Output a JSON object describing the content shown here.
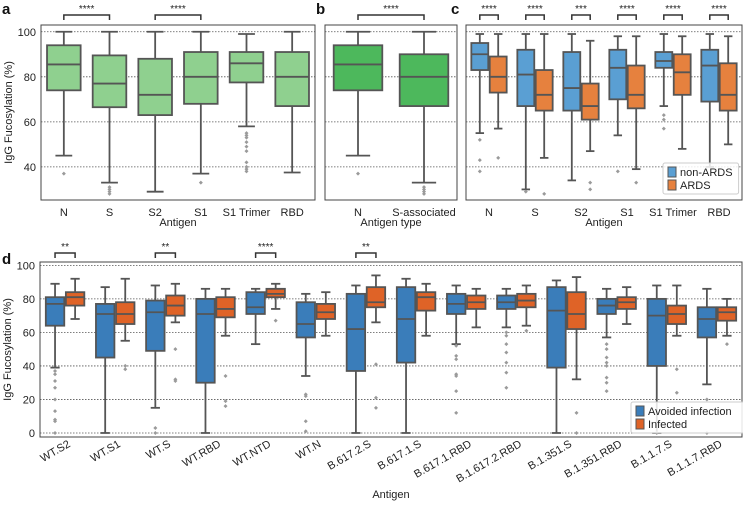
{
  "colors": {
    "light_green": "#8fd08f",
    "green": "#4db85c",
    "blue_c": "#5a9fd3",
    "orange_c": "#e6813e",
    "blue_d": "#3a7dba",
    "orange_d": "#df6327",
    "edge": "#555555",
    "flier": "#9a9a9a"
  },
  "chart_data": [
    {
      "panel": "a",
      "type": "box",
      "ylabel": "IgG Fucosylation (%)",
      "xlabel": "Antigen",
      "ylim": [
        25.3,
        103
      ],
      "yticks": [
        40,
        60,
        80,
        100
      ],
      "categories": [
        "N",
        "S",
        "S2",
        "S1",
        "S1 Trimer",
        "RBD"
      ],
      "series": [
        {
          "name": "all",
          "color": "light_green",
          "boxes": [
            {
              "lo": 45,
              "q1": 74,
              "med": 85.5,
              "q3": 94,
              "hi": 100,
              "fliers": [
                37
              ]
            },
            {
              "lo": 33,
              "q1": 66.5,
              "med": 77,
              "q3": 89.5,
              "hi": 100,
              "fliers": [
                28,
                29,
                30,
                31
              ]
            },
            {
              "lo": 29,
              "q1": 63,
              "med": 72,
              "q3": 88,
              "hi": 100,
              "fliers": []
            },
            {
              "lo": 37,
              "q1": 68,
              "med": 80,
              "q3": 91,
              "hi": 100,
              "fliers": [
                33
              ]
            },
            {
              "lo": 58,
              "q1": 77.5,
              "med": 86,
              "q3": 91,
              "hi": 99,
              "fliers": [
                55,
                54,
                53,
                51,
                49,
                47,
                42,
                40,
                39,
                38
              ]
            },
            {
              "lo": 37.5,
              "q1": 67,
              "med": 80,
              "q3": 91,
              "hi": 100,
              "fliers": []
            }
          ]
        }
      ],
      "significance": [
        {
          "from": 0,
          "to": 1,
          "label": "****"
        },
        {
          "from": 2,
          "to": 3,
          "label": "****"
        }
      ]
    },
    {
      "panel": "b",
      "type": "box",
      "xlabel": "Antigen type",
      "ylim": [
        25.3,
        103
      ],
      "yticks": [
        40,
        60,
        80,
        100
      ],
      "categories": [
        "N",
        "S-associated"
      ],
      "series": [
        {
          "name": "all",
          "color": "green",
          "boxes": [
            {
              "lo": 45,
              "q1": 74,
              "med": 85.5,
              "q3": 94,
              "hi": 100,
              "fliers": [
                37
              ]
            },
            {
              "lo": 33,
              "q1": 67,
              "med": 80,
              "q3": 90,
              "hi": 100,
              "fliers": [
                28,
                29,
                30,
                31
              ]
            }
          ]
        }
      ],
      "significance": [
        {
          "from": 0,
          "to": 1,
          "label": "****"
        }
      ]
    },
    {
      "panel": "c",
      "type": "box",
      "xlabel": "Antigen",
      "ylim": [
        25.3,
        103
      ],
      "yticks": [
        40,
        60,
        80,
        100
      ],
      "legend": "lower-right",
      "categories": [
        "N",
        "S",
        "S2",
        "S1",
        "S1 Trimer",
        "RBD"
      ],
      "series": [
        {
          "name": "non-ARDS",
          "color": "blue_c",
          "boxes": [
            {
              "lo": 55,
              "q1": 83,
              "med": 90,
              "q3": 95,
              "hi": 99,
              "fliers": [
                52,
                43,
                38
              ]
            },
            {
              "lo": 30,
              "q1": 67,
              "med": 81,
              "q3": 92,
              "hi": 99,
              "fliers": [
                29
              ]
            },
            {
              "lo": 34,
              "q1": 65,
              "med": 75,
              "q3": 91,
              "hi": 99,
              "fliers": []
            },
            {
              "lo": 54,
              "q1": 70,
              "med": 84,
              "q3": 92,
              "hi": 98,
              "fliers": [
                38
              ]
            },
            {
              "lo": 67,
              "q1": 84,
              "med": 87,
              "q3": 91,
              "hi": 99,
              "fliers": [
                63,
                61,
                57
              ]
            },
            {
              "lo": 40,
              "q1": 69,
              "med": 85,
              "q3": 92,
              "hi": 99,
              "fliers": []
            }
          ]
        },
        {
          "name": "ARDS",
          "color": "orange_c",
          "boxes": [
            {
              "lo": 57,
              "q1": 73,
              "med": 80,
              "q3": 89,
              "hi": 99,
              "fliers": [
                44
              ]
            },
            {
              "lo": 44,
              "q1": 65,
              "med": 72,
              "q3": 83,
              "hi": 99,
              "fliers": [
                28
              ]
            },
            {
              "lo": 47,
              "q1": 61,
              "med": 67,
              "q3": 77,
              "hi": 96,
              "fliers": [
                33,
                30
              ]
            },
            {
              "lo": 39,
              "q1": 66,
              "med": 72,
              "q3": 85,
              "hi": 98,
              "fliers": [
                33
              ]
            },
            {
              "lo": 48,
              "q1": 72,
              "med": 82,
              "q3": 90,
              "hi": 98,
              "fliers": []
            },
            {
              "lo": 50,
              "q1": 65,
              "med": 72,
              "q3": 86,
              "hi": 98,
              "fliers": []
            }
          ]
        }
      ],
      "significance": [
        {
          "cat": 0,
          "label": "****"
        },
        {
          "cat": 1,
          "label": "****"
        },
        {
          "cat": 2,
          "label": "***"
        },
        {
          "cat": 3,
          "label": "****"
        },
        {
          "cat": 4,
          "label": "****"
        },
        {
          "cat": 5,
          "label": "****"
        }
      ]
    },
    {
      "panel": "d",
      "type": "box",
      "ylabel": "IgG Fucosylation (%)",
      "xlabel": "Antigen",
      "ylim": [
        -2.4,
        102
      ],
      "yticks": [
        0,
        20,
        40,
        60,
        80,
        100
      ],
      "legend": "lower-right",
      "categories": [
        "WT.S2",
        "WT.S1",
        "WT.S",
        "WT.RBD",
        "WT.NTD",
        "WT.N",
        "B.617.2.S",
        "B.617.1.S",
        "B.617.1.RBD",
        "B.1.617.2.RBD",
        "B.1.351.S",
        "B.1.351.RBD",
        "B.1.1.7.S",
        "B.1.1.7.RBD"
      ],
      "series": [
        {
          "name": "Avoided infection",
          "color": "blue_d",
          "boxes": [
            {
              "lo": 39,
              "q1": 64,
              "med": 77,
              "q3": 81,
              "hi": 89,
              "fliers": [
                37,
                35,
                31,
                27,
                20,
                13,
                8,
                7,
                0
              ]
            },
            {
              "lo": 0,
              "q1": 45,
              "med": 71,
              "q3": 77,
              "hi": 87,
              "fliers": []
            },
            {
              "lo": 15,
              "q1": 49,
              "med": 72,
              "q3": 79,
              "hi": 88,
              "fliers": [
                3,
                0
              ]
            },
            {
              "lo": 0,
              "q1": 30,
              "med": 71,
              "q3": 80,
              "hi": 86,
              "fliers": []
            },
            {
              "lo": 53,
              "q1": 71,
              "med": 75,
              "q3": 84,
              "hi": 86,
              "fliers": []
            },
            {
              "lo": 34,
              "q1": 57,
              "med": 65,
              "q3": 78,
              "hi": 83,
              "fliers": [
                23,
                22,
                7,
                1
              ]
            },
            {
              "lo": 0,
              "q1": 37,
              "med": 62,
              "q3": 83,
              "hi": 88,
              "fliers": []
            },
            {
              "lo": 0,
              "q1": 42,
              "med": 68,
              "q3": 87,
              "hi": 92,
              "fliers": []
            },
            {
              "lo": 53,
              "q1": 71,
              "med": 77,
              "q3": 83,
              "hi": 88,
              "fliers": [
                52,
                46,
                44,
                35,
                34,
                25,
                12
              ]
            },
            {
              "lo": 63,
              "q1": 74,
              "med": 78,
              "q3": 82,
              "hi": 86,
              "fliers": [
                60,
                58,
                53,
                48,
                42,
                36,
                27
              ]
            },
            {
              "lo": 0,
              "q1": 39,
              "med": 73,
              "q3": 87,
              "hi": 91,
              "fliers": []
            },
            {
              "lo": 57,
              "q1": 71,
              "med": 76,
              "q3": 80,
              "hi": 86,
              "fliers": [
                53,
                50,
                45,
                42,
                40,
                33,
                30,
                25
              ]
            },
            {
              "lo": 0,
              "q1": 40,
              "med": 70,
              "q3": 80,
              "hi": 88,
              "fliers": [
                0
              ]
            },
            {
              "lo": 29,
              "q1": 57,
              "med": 68,
              "q3": 75,
              "hi": 86,
              "fliers": [
                20,
                0
              ]
            }
          ]
        },
        {
          "name": "Infected",
          "color": "orange_d",
          "boxes": [
            {
              "lo": 68,
              "q1": 76,
              "med": 81,
              "q3": 84,
              "hi": 92,
              "fliers": []
            },
            {
              "lo": 55,
              "q1": 65,
              "med": 71,
              "q3": 78,
              "hi": 92,
              "fliers": [
                40,
                38
              ]
            },
            {
              "lo": 66,
              "q1": 70,
              "med": 76,
              "q3": 82,
              "hi": 89,
              "fliers": [
                50,
                32,
                31
              ]
            },
            {
              "lo": 58,
              "q1": 69,
              "med": 74,
              "q3": 81,
              "hi": 86,
              "fliers": [
                34,
                19,
                16
              ]
            },
            {
              "lo": 74,
              "q1": 81,
              "med": 83,
              "q3": 86,
              "hi": 89,
              "fliers": [
                67
              ]
            },
            {
              "lo": 58,
              "q1": 68,
              "med": 72,
              "q3": 77,
              "hi": 84,
              "fliers": []
            },
            {
              "lo": 66,
              "q1": 75,
              "med": 78,
              "q3": 87,
              "hi": 94,
              "fliers": [
                41,
                21,
                15
              ]
            },
            {
              "lo": 58,
              "q1": 73,
              "med": 81,
              "q3": 84,
              "hi": 89,
              "fliers": []
            },
            {
              "lo": 63,
              "q1": 74,
              "med": 78,
              "q3": 82,
              "hi": 86,
              "fliers": []
            },
            {
              "lo": 64,
              "q1": 75,
              "med": 79,
              "q3": 83,
              "hi": 88,
              "fliers": [
                61
              ]
            },
            {
              "lo": 32,
              "q1": 62,
              "med": 71,
              "q3": 84,
              "hi": 93,
              "fliers": [
                12,
                0
              ]
            },
            {
              "lo": 65,
              "q1": 74,
              "med": 78,
              "q3": 81,
              "hi": 87,
              "fliers": []
            },
            {
              "lo": 58,
              "q1": 65,
              "med": 71,
              "q3": 76,
              "hi": 88,
              "fliers": [
                38,
                24
              ]
            },
            {
              "lo": 58,
              "q1": 67,
              "med": 72,
              "q3": 75,
              "hi": 80,
              "fliers": [
                53
              ]
            }
          ]
        }
      ],
      "significance": [
        {
          "cat": 0,
          "label": "**"
        },
        {
          "cat": 2,
          "label": "**"
        },
        {
          "cat": 4,
          "label": "****"
        },
        {
          "cat": 6,
          "label": "**"
        }
      ]
    }
  ]
}
